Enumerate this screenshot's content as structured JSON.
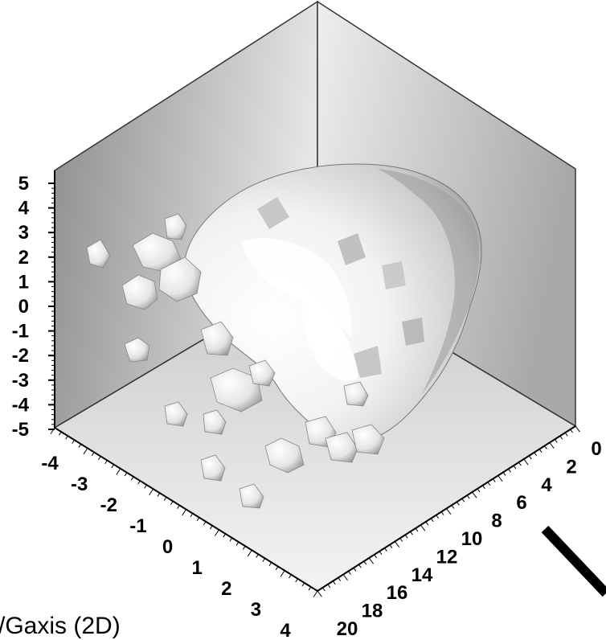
{
  "chart_data": {
    "type": "3d-isosurface",
    "title": "",
    "caption": "/Gaxis (2D)",
    "vertical_axis": {
      "ticks": [
        "5",
        "4",
        "3",
        "2",
        "1",
        "0",
        "-1",
        "-2",
        "-3",
        "-4",
        "-5"
      ],
      "range": [
        -5,
        5
      ]
    },
    "left_depth_axis": {
      "ticks": [
        "-4",
        "-3",
        "-2",
        "-1",
        "0",
        "1",
        "2",
        "3",
        "4"
      ],
      "range": [
        -4,
        4
      ]
    },
    "right_depth_axis": {
      "ticks": [
        "20",
        "18",
        "16",
        "14",
        "12",
        "10",
        "8",
        "6",
        "4",
        "2",
        "0"
      ],
      "range": [
        0,
        20
      ]
    },
    "surface_color": "#d8d8d8",
    "wall_color": "#b9b9b9",
    "floor_color": "#d4d4d4",
    "grid": false
  },
  "annotation": {
    "arrow_color": "#000000"
  }
}
